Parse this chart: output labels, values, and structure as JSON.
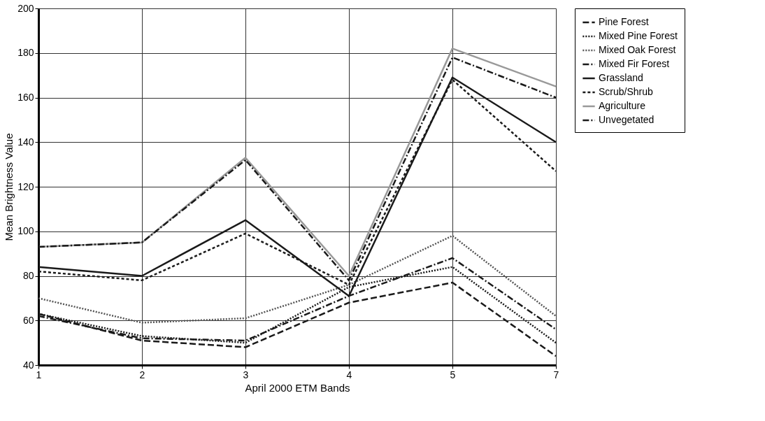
{
  "chart_data": {
    "type": "line",
    "xlabel": "April 2000 ETM Bands",
    "ylabel": "Mean Brightness Value",
    "categories": [
      "1",
      "2",
      "3",
      "4",
      "5",
      "7"
    ],
    "ylim": [
      40,
      200
    ],
    "yticks": [
      40,
      60,
      80,
      100,
      120,
      140,
      160,
      180,
      200
    ],
    "grid": true,
    "legend": "right",
    "marker": "none",
    "series": [
      {
        "name": "Pine Forest",
        "color": "#1a1a1a",
        "line_style": "dashed",
        "values": [
          63,
          51,
          48,
          68,
          77,
          44
        ]
      },
      {
        "name": "Mixed Pine Forest",
        "color": "#1a1a1a",
        "line_style": "dotted",
        "values": [
          63,
          53,
          50,
          75,
          84,
          50
        ]
      },
      {
        "name": "Mixed Oak Forest",
        "color": "#555555",
        "line_style": "dotted",
        "values": [
          70,
          59,
          61,
          76,
          98,
          62
        ]
      },
      {
        "name": "Mixed Fir Forest",
        "color": "#1a1a1a",
        "line_style": "dashdot",
        "values": [
          62,
          52,
          51,
          71,
          88,
          56
        ]
      },
      {
        "name": "Grassland",
        "color": "#1a1a1a",
        "line_style": "solid",
        "values": [
          84,
          80,
          105,
          71,
          169,
          140
        ]
      },
      {
        "name": "Scrub/Shrub",
        "color": "#1a1a1a",
        "line_style": "shortdash",
        "values": [
          82,
          78,
          99,
          76,
          168,
          127
        ]
      },
      {
        "name": "Agriculture",
        "color": "#999999",
        "line_style": "solid",
        "values": [
          93,
          95,
          133,
          80,
          182,
          165
        ]
      },
      {
        "name": "Unvegetated",
        "color": "#1a1a1a",
        "line_style": "dashdot",
        "values": [
          93,
          95,
          132,
          78,
          178,
          160
        ]
      }
    ]
  }
}
